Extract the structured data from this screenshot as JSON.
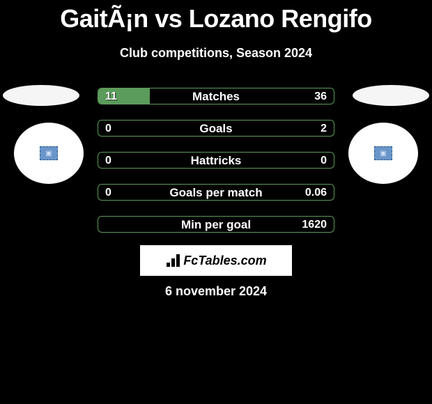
{
  "header": {
    "title": "GaitÃ¡n vs Lozano Rengifo",
    "subtitle": "Club competitions, Season 2024"
  },
  "colors": {
    "background": "#000000",
    "text": "#ffffff",
    "bar_green": "#5b9b5b",
    "avatar_bg": "#ffffff",
    "avatar_inner_bg": "#6a95c9",
    "branding_bg": "#ffffff"
  },
  "avatars": {
    "left_icon": "placeholder-image-icon",
    "right_icon": "placeholder-image-icon"
  },
  "bars": [
    {
      "label": "Matches",
      "left_val": "11",
      "right_val": "36",
      "left_pct": 22,
      "right_pct": 0
    },
    {
      "label": "Goals",
      "left_val": "0",
      "right_val": "2",
      "left_pct": 0,
      "right_pct": 0
    },
    {
      "label": "Hattricks",
      "left_val": "0",
      "right_val": "0",
      "left_pct": 0,
      "right_pct": 0
    },
    {
      "label": "Goals per match",
      "left_val": "0",
      "right_val": "0.06",
      "left_pct": 0,
      "right_pct": 0
    },
    {
      "label": "Min per goal",
      "left_val": "",
      "right_val": "1620",
      "left_pct": 0,
      "right_pct": 0
    }
  ],
  "branding": {
    "text": "FcTables.com"
  },
  "footer": {
    "date": "6 november 2024"
  }
}
